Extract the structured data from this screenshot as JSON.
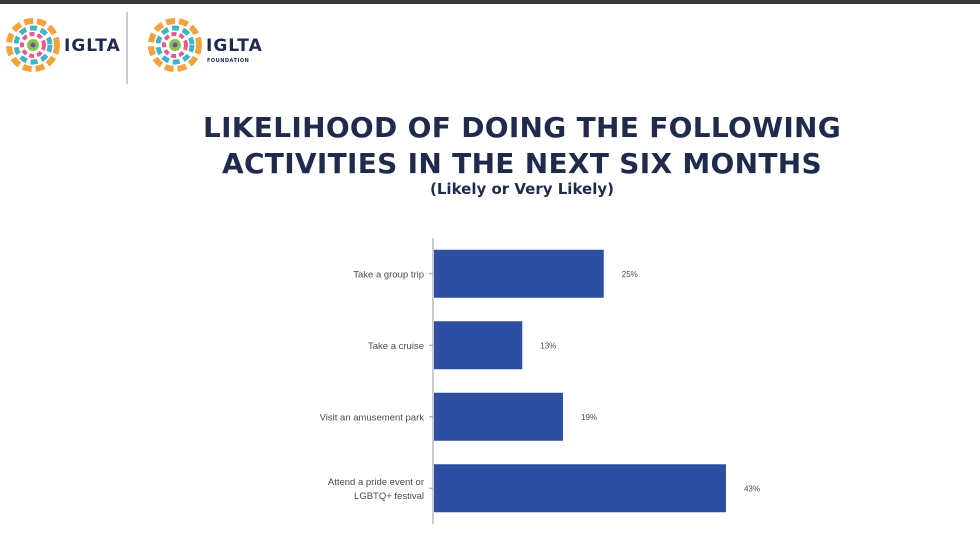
{
  "header": {
    "logos": [
      {
        "text": "IGLTA",
        "sub": ""
      },
      {
        "text": "IGLTA",
        "sub": "FOUNDATION"
      }
    ]
  },
  "colors": {
    "bar": "#2e4fa1",
    "title": "#1f2a4d",
    "axis": "#9a9a9a"
  },
  "chart_data": {
    "type": "bar",
    "orientation": "horizontal",
    "title": "LIKELIHOOD OF DOING THE FOLLOWING ACTIVITIES IN THE NEXT SIX MONTHS",
    "title_lines": [
      "LIKELIHOOD OF DOING THE FOLLOWING",
      "ACTIVITIES IN THE NEXT SIX MONTHS"
    ],
    "subtitle": "(Likely or Very Likely)",
    "categories": [
      "Take a group trip",
      "Take a cruise",
      "Visit an amusement park",
      "Attend a pride event or LGBTQ+ festival"
    ],
    "category_lines": [
      [
        "Take a group trip"
      ],
      [
        "Take a cruise"
      ],
      [
        "Visit an amusement park"
      ],
      [
        "Attend a pride event or",
        "LGBTQ+ festival"
      ]
    ],
    "values": [
      25,
      13,
      19,
      43
    ],
    "data_labels": [
      "25%",
      "13%",
      "19%",
      "43%"
    ],
    "unit": "%",
    "xlim": [
      0,
      45
    ],
    "grid": false,
    "legend": "none"
  }
}
